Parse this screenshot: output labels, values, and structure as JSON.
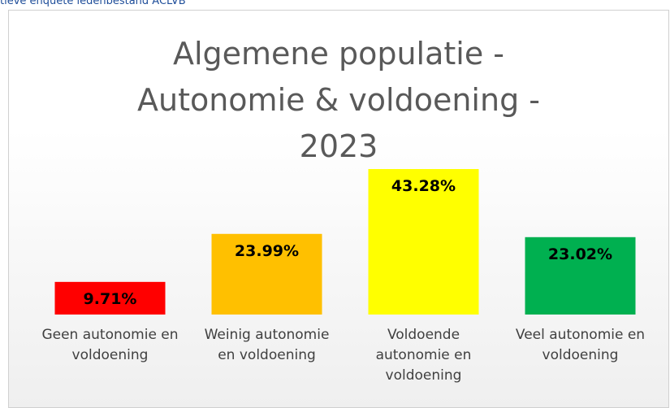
{
  "header_text": "tieve enquête ledenbestand ACLVB",
  "chart_data": {
    "type": "bar",
    "title": "Algemene populatie - Autonomie & voldoening - 2023",
    "categories": [
      "Geen autonomie en voldoening",
      "Weinig autonomie en voldoening",
      "Voldoende autonomie en voldoening",
      "Veel autonomie en voldoening"
    ],
    "values": [
      9.71,
      23.99,
      43.28,
      23.02
    ],
    "value_labels": [
      "9.71%",
      "23.99%",
      "43.28%",
      "23.02%"
    ],
    "colors": [
      "#ff0000",
      "#ffc000",
      "#ffff00",
      "#00b050"
    ]
  }
}
